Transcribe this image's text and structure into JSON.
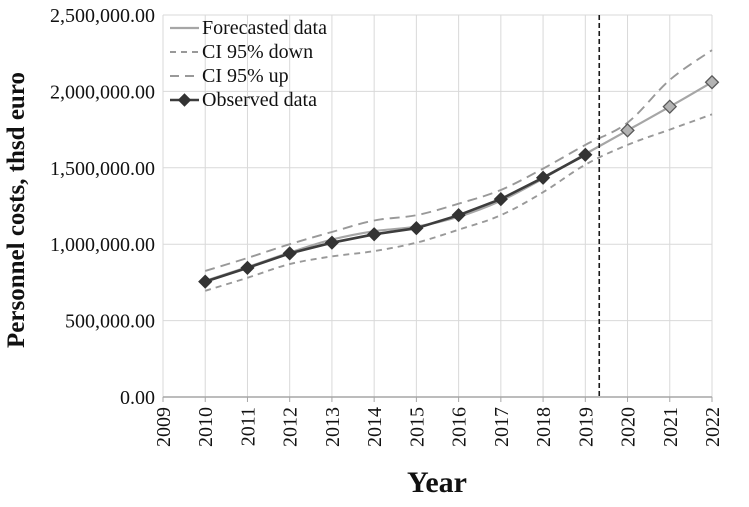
{
  "chart_data": {
    "type": "line",
    "title": "",
    "xlabel": "Year",
    "ylabel": "Personnel costs, thsd euro",
    "x_tick_labels": [
      "2009",
      "2010",
      "2011",
      "2012",
      "2013",
      "2014",
      "2015",
      "2016",
      "2017",
      "2018",
      "2019",
      "2020",
      "2021",
      "2022"
    ],
    "y_tick_labels": [
      "0.00",
      "500,000.00",
      "1,000,000.00",
      "1,500,000.00",
      "2,000,000.00",
      "2,500,000.00"
    ],
    "y_tick_values": [
      0,
      500000,
      1000000,
      1500000,
      2000000,
      2500000
    ],
    "xlim": [
      2009,
      2022
    ],
    "ylim": [
      0,
      2500000
    ],
    "grid": true,
    "legend_position": "top-left",
    "forecast_separator_x": 2019.33,
    "series": [
      {
        "name": "Forecasted data",
        "style": "solid",
        "smooth": true,
        "color": "#a6a6a6",
        "marker": "diamond-from-2020",
        "x": [
          2010,
          2011,
          2012,
          2013,
          2014,
          2015,
          2016,
          2017,
          2018,
          2019,
          2020,
          2021,
          2022
        ],
        "values": [
          760000,
          850000,
          945000,
          1030000,
          1085000,
          1115000,
          1180000,
          1285000,
          1430000,
          1590000,
          1745000,
          1900000,
          2060000
        ]
      },
      {
        "name": "CI 95% down",
        "style": "dashed",
        "smooth": true,
        "color": "#999999",
        "dash": "6 5",
        "marker": "none",
        "x": [
          2010,
          2011,
          2012,
          2013,
          2014,
          2015,
          2016,
          2017,
          2018,
          2019,
          2020,
          2021,
          2022
        ],
        "values": [
          695000,
          780000,
          870000,
          920000,
          955000,
          1010000,
          1095000,
          1190000,
          1340000,
          1520000,
          1650000,
          1750000,
          1850000
        ]
      },
      {
        "name": "CI 95% up",
        "style": "dashed",
        "smooth": true,
        "color": "#999999",
        "dash": "10 6",
        "marker": "none",
        "x": [
          2010,
          2011,
          2012,
          2013,
          2014,
          2015,
          2016,
          2017,
          2018,
          2019,
          2020,
          2021,
          2022
        ],
        "values": [
          825000,
          910000,
          1000000,
          1080000,
          1155000,
          1190000,
          1265000,
          1355000,
          1495000,
          1650000,
          1795000,
          2075000,
          2270000
        ]
      },
      {
        "name": "Observed data",
        "style": "solid",
        "smooth": false,
        "color": "#3d3d3d",
        "marker": "diamond",
        "x": [
          2010,
          2011,
          2012,
          2013,
          2014,
          2015,
          2016,
          2017,
          2018,
          2019
        ],
        "values": [
          755000,
          845000,
          940000,
          1010000,
          1065000,
          1105000,
          1190000,
          1295000,
          1435000,
          1585000
        ]
      }
    ],
    "marker_colors": {
      "observed_fill": "#333333",
      "forecast_fill": "#b3b3b3",
      "forecast_stroke": "#595959"
    },
    "axis_colors": {
      "grid": "#d9d9d9",
      "axis_line": "#a6a6a6",
      "separator": "#1a1a1a",
      "text": "#111111"
    }
  }
}
